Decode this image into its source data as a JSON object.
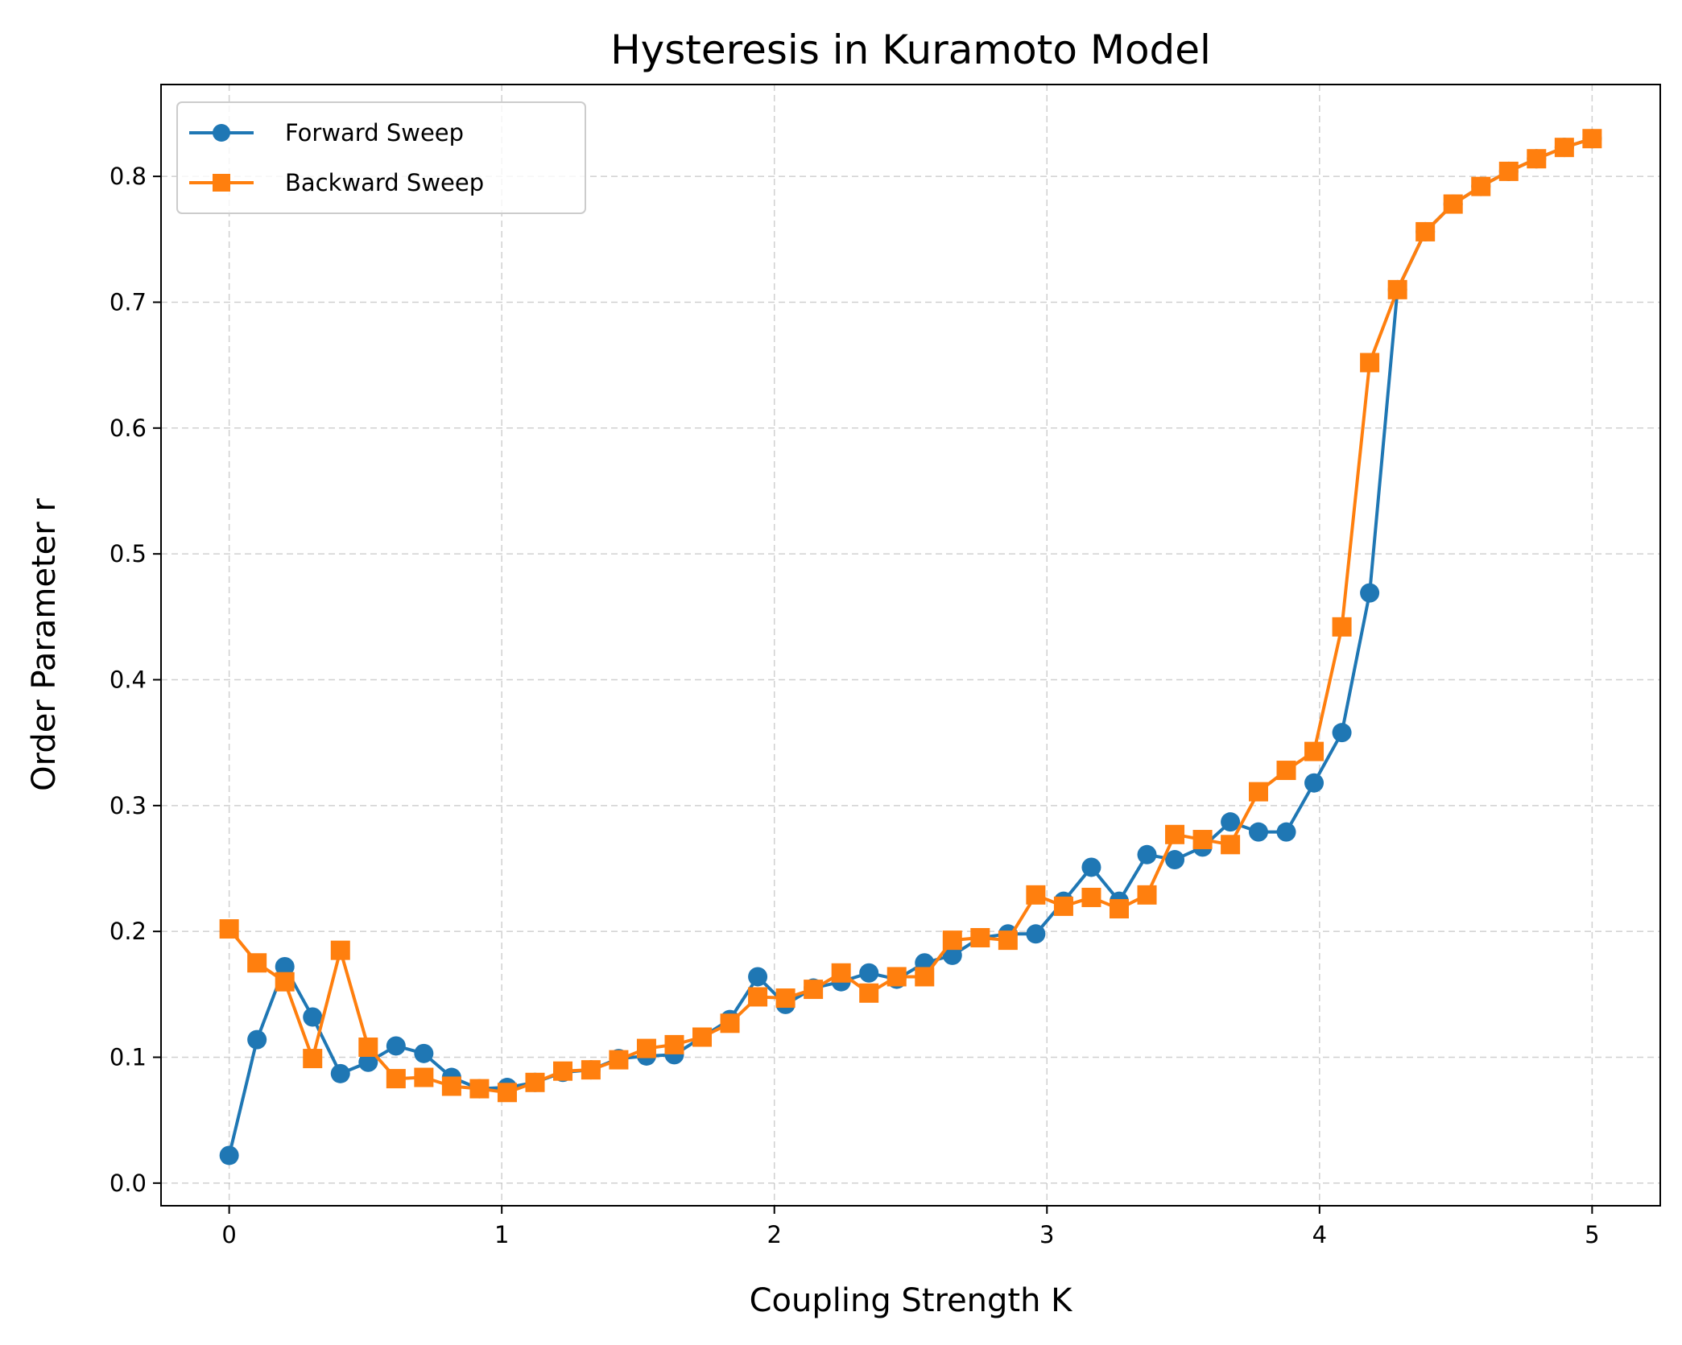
{
  "chart_data": {
    "type": "line",
    "title": "Hysteresis in Kuramoto Model",
    "xlabel": "Coupling Strength K",
    "ylabel": "Order Parameter r",
    "xlim": [
      -0.25,
      5.25
    ],
    "ylim": [
      -0.018,
      0.873
    ],
    "xticks": [
      0,
      1,
      2,
      3,
      4,
      5
    ],
    "xtick_labels": [
      "0",
      "1",
      "2",
      "3",
      "4",
      "5"
    ],
    "yticks": [
      0.0,
      0.1,
      0.2,
      0.3,
      0.4,
      0.5,
      0.6,
      0.7,
      0.8
    ],
    "ytick_labels": [
      "0.0",
      "0.1",
      "0.2",
      "0.3",
      "0.4",
      "0.5",
      "0.6",
      "0.7",
      "0.8"
    ],
    "grid": true,
    "legend_position": "top-left",
    "x": [
      0.0,
      0.102,
      0.204,
      0.306,
      0.408,
      0.51,
      0.612,
      0.714,
      0.816,
      0.918,
      1.02,
      1.122,
      1.224,
      1.327,
      1.429,
      1.531,
      1.633,
      1.735,
      1.837,
      1.939,
      2.041,
      2.143,
      2.245,
      2.347,
      2.449,
      2.551,
      2.653,
      2.755,
      2.857,
      2.959,
      3.061,
      3.163,
      3.265,
      3.367,
      3.469,
      3.571,
      3.673,
      3.776,
      3.878,
      3.98,
      4.082,
      4.184,
      4.286,
      4.388,
      4.49,
      4.592,
      4.694,
      4.796,
      4.898,
      5.0
    ],
    "series": [
      {
        "name": "Forward Sweep",
        "color": "#1f77b4",
        "marker": "circle",
        "values": [
          0.022,
          0.114,
          0.172,
          0.132,
          0.087,
          0.096,
          0.109,
          0.103,
          0.084,
          0.075,
          0.076,
          0.08,
          0.088,
          0.09,
          0.099,
          0.101,
          0.102,
          0.116,
          0.13,
          0.164,
          0.142,
          0.155,
          0.16,
          0.167,
          0.162,
          0.175,
          0.181,
          0.195,
          0.198,
          0.198,
          0.224,
          0.251,
          0.224,
          0.261,
          0.257,
          0.267,
          0.287,
          0.279,
          0.279,
          0.318,
          0.358,
          0.469,
          0.71,
          0.756,
          0.778,
          0.792,
          0.804,
          0.814,
          0.823,
          0.83
        ]
      },
      {
        "name": "Backward Sweep",
        "color": "#ff7f0e",
        "marker": "square",
        "values": [
          0.202,
          0.175,
          0.16,
          0.099,
          0.185,
          0.108,
          0.083,
          0.084,
          0.077,
          0.075,
          0.072,
          0.08,
          0.089,
          0.09,
          0.098,
          0.107,
          0.11,
          0.116,
          0.127,
          0.148,
          0.147,
          0.154,
          0.167,
          0.151,
          0.164,
          0.164,
          0.193,
          0.195,
          0.193,
          0.229,
          0.22,
          0.227,
          0.218,
          0.229,
          0.277,
          0.273,
          0.269,
          0.311,
          0.328,
          0.343,
          0.442,
          0.652,
          0.71,
          0.756,
          0.778,
          0.792,
          0.804,
          0.814,
          0.823,
          0.83
        ]
      }
    ]
  }
}
